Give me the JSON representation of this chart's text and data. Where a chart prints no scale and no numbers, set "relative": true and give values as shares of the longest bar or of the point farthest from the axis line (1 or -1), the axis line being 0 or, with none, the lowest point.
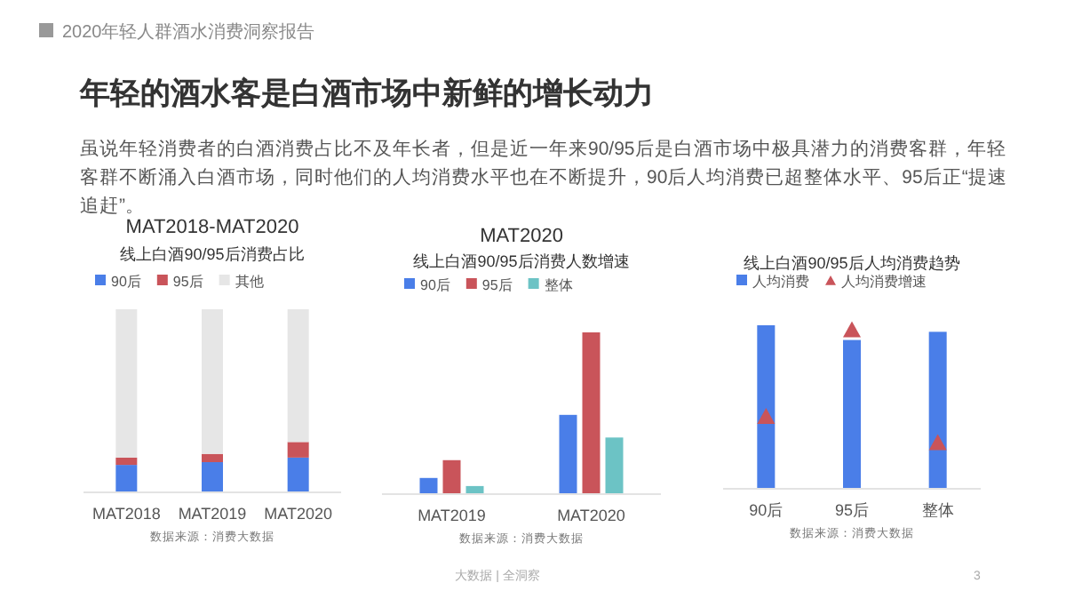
{
  "chart_data": [
    {
      "type": "other",
      "title": "年轻的酒水客是白酒市场中新鲜的增长动力",
      "subtitle": "虽说年轻消费者的白酒消费占比不及年长者，但是近一年来90/95后是白酒市场中极具潜力的消费客群，年轻客群不断涌入白酒市场，同时他们的人均消费水平也在不断提升，90后人均消费已超整体水平、95后正“提速追赶”。",
      "annotations": [
        "2020年轻人群酒水消费洞察报告",
        "大数据 | 全洞察",
        "3"
      ]
    },
    {
      "type": "bar",
      "stacked": true,
      "relative": true,
      "title": "MAT2018-MAT2020",
      "subtitle": "线上白酒90/95后消费占比",
      "categories": [
        "MAT2018",
        "MAT2019",
        "MAT2020"
      ],
      "legend": "top",
      "annotations": [
        "数据来源：消费大数据"
      ],
      "series": [
        {
          "name": "90后",
          "color": "#4a7ee8",
          "values": [
            0.15,
            0.165,
            0.19
          ]
        },
        {
          "name": "95后",
          "color": "#c9545a",
          "values": [
            0.04,
            0.045,
            0.085
          ]
        },
        {
          "name": "其他",
          "color": "#e6e6e6",
          "values": [
            0.81,
            0.79,
            0.725
          ]
        }
      ]
    },
    {
      "type": "bar",
      "relative": true,
      "title": "MAT2020",
      "subtitle": "线上白酒90/95后消费人数增速",
      "categories": [
        "MAT2019",
        "MAT2020"
      ],
      "legend": "top",
      "annotations": [
        "数据来源：消费大数据"
      ],
      "series": [
        {
          "name": "90后",
          "color": "#4a7ee8",
          "values": [
            0.1,
            0.49
          ]
        },
        {
          "name": "95后",
          "color": "#c9545a",
          "values": [
            0.21,
            1
          ]
        },
        {
          "name": "整体",
          "color": "#6cc3c5",
          "values": [
            0.05,
            0.35
          ]
        }
      ]
    },
    {
      "type": "bar",
      "relative": true,
      "title": "线上白酒90/95后人均消费趋势",
      "categories": [
        "90后",
        "95后",
        "整体"
      ],
      "legend": "top",
      "marker": "triangle",
      "annotations": [
        "数据来源：消费大数据"
      ],
      "series": [
        {
          "name": "人均消费",
          "color": "#4a7ee8",
          "values": [
            1,
            0.91,
            0.96
          ]
        },
        {
          "name": "人均消费增速",
          "type": "scatter",
          "color": "#c9545a",
          "values": [
            0.44,
            0.97,
            0.28
          ]
        }
      ]
    }
  ]
}
